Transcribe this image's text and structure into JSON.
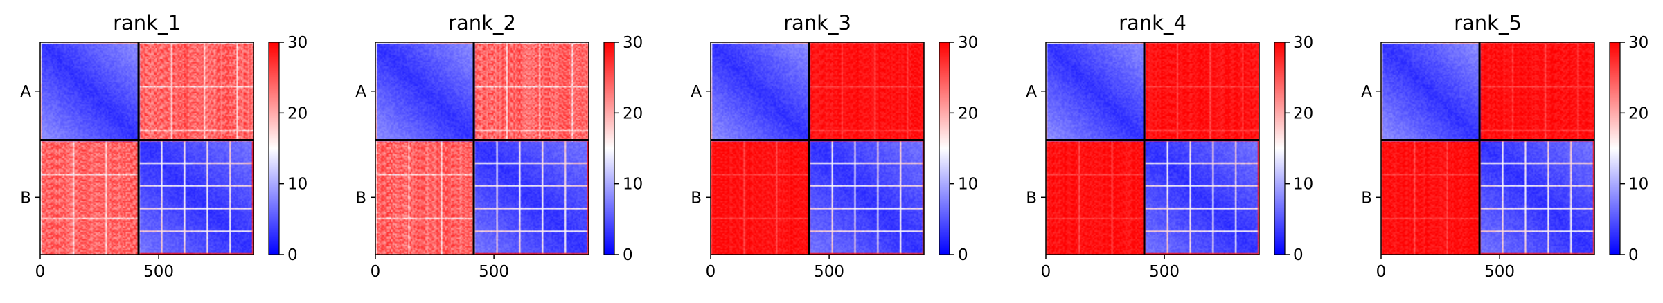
{
  "chart_data": {
    "type": "heatmap",
    "colormap": {
      "low": "#0000ff",
      "mid": "#ffffff",
      "high": "#ff0000"
    },
    "vmin": 0,
    "vmax": 30,
    "colorbar_ticks": [
      "0",
      "10",
      "20",
      "30"
    ],
    "x_ticks": [
      {
        "value": 0,
        "label": "0"
      },
      {
        "value": 500,
        "label": "500"
      }
    ],
    "x_range": [
      0,
      900
    ],
    "row_labels": [
      "A",
      "B"
    ],
    "chain_boundary": 415,
    "panels": [
      {
        "title": "rank_1",
        "offdiag_level": 24,
        "offdiag_variation": 7
      },
      {
        "title": "rank_2",
        "offdiag_level": 24,
        "offdiag_variation": 7
      },
      {
        "title": "rank_3",
        "offdiag_level": 29,
        "offdiag_variation": 3
      },
      {
        "title": "rank_4",
        "offdiag_level": 29,
        "offdiag_variation": 3
      },
      {
        "title": "rank_5",
        "offdiag_level": 29,
        "offdiag_variation": 3
      }
    ]
  }
}
